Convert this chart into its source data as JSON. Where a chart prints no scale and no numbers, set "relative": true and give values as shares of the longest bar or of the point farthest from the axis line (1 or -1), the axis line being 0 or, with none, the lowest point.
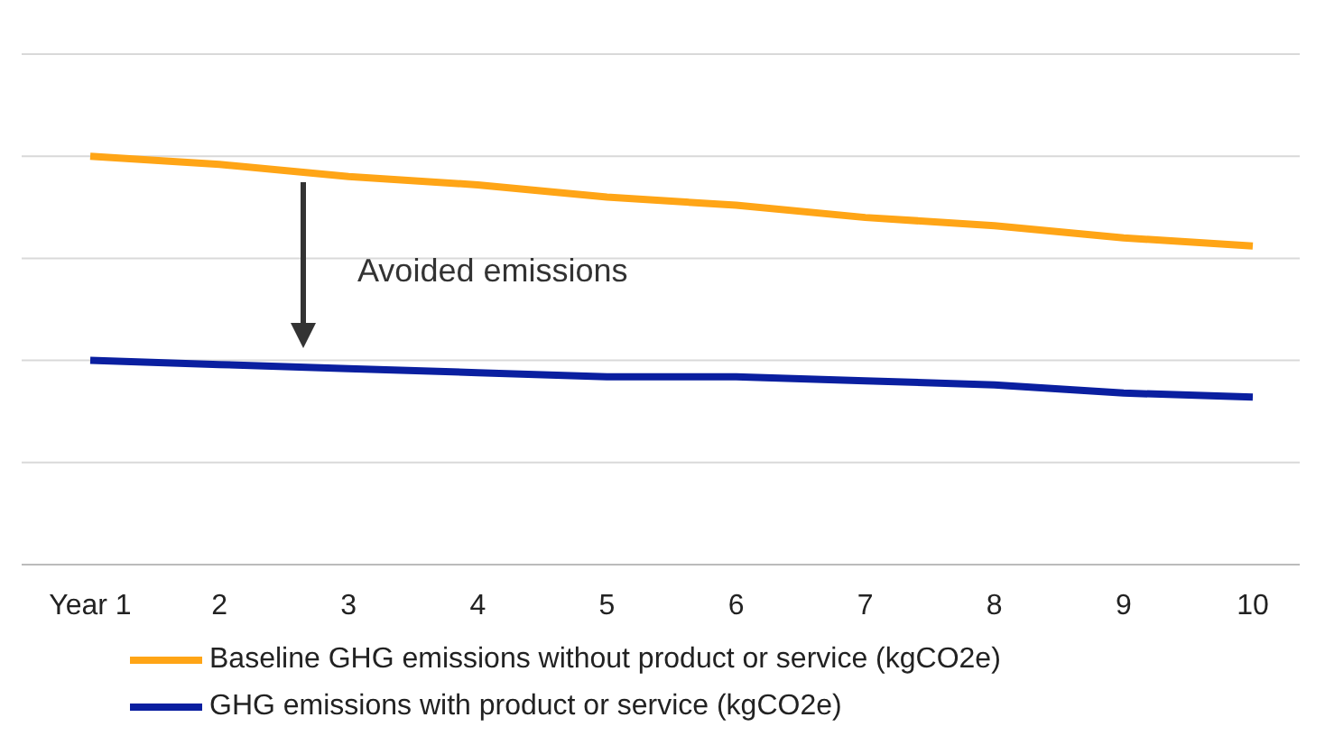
{
  "chart_data": {
    "type": "line",
    "relative": true,
    "categories": [
      "Year 1",
      "2",
      "3",
      "4",
      "5",
      "6",
      "7",
      "8",
      "9",
      "10"
    ],
    "series": [
      {
        "name": "Baseline GHG emissions without product or service (kgCO2e)",
        "color": "#ffa516",
        "values": [
          1,
          0.98,
          0.95,
          0.93,
          0.9,
          0.88,
          0.85,
          0.83,
          0.8,
          0.78
        ]
      },
      {
        "name": "GHG emissions with product or service (kgCO2e)",
        "color": "#0a1fa0",
        "values": [
          0.5,
          0.49,
          0.48,
          0.47,
          0.46,
          0.46,
          0.45,
          0.44,
          0.42,
          0.41
        ]
      }
    ],
    "annotations": [
      "Avoided emissions"
    ],
    "grid": "y",
    "legend": "bottom",
    "marker": "none",
    "line_style": "solid"
  }
}
